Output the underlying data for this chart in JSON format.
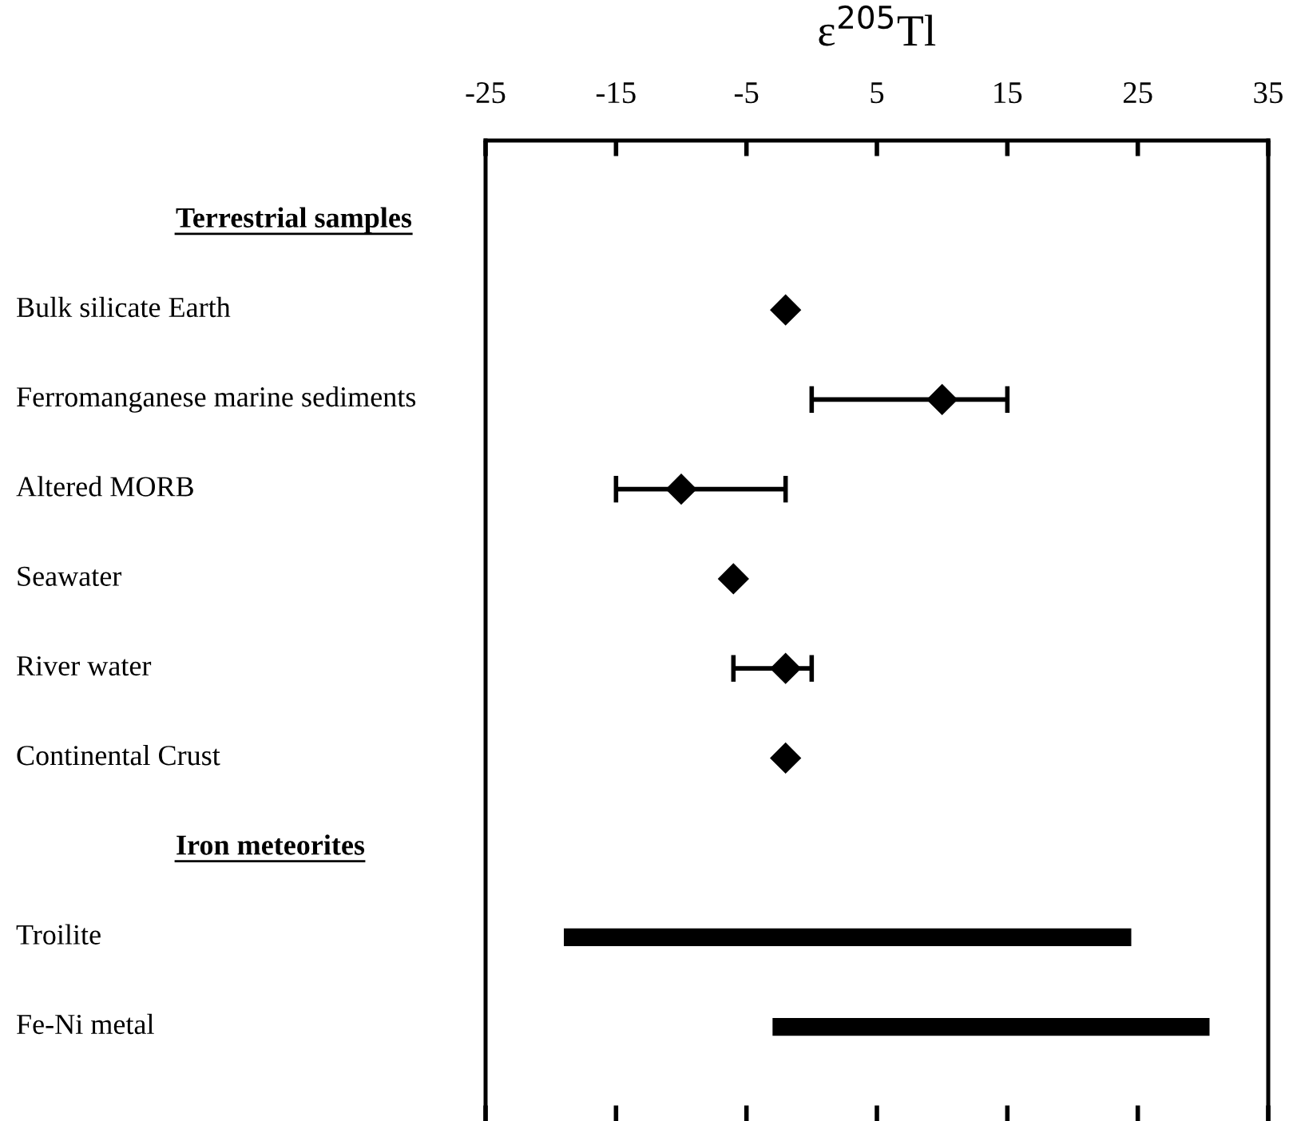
{
  "chart_data": {
    "type": "scatter",
    "orientation": "horizontal",
    "xlabel": "ε$^{205}$Tl",
    "categories": [
      null,
      "Bulk silicate Earth",
      "Ferromanganese marine sediments",
      "Altered MORB",
      "Seawater",
      "River water",
      "Continental Crust",
      null,
      "Troilite",
      "Fe-Ni metal"
    ],
    "annotations": [
      "Terrestrial samples",
      "Iron meteorites"
    ],
    "series": [
      {
        "color": "#000000",
        "values": [
          null,
          -2,
          10,
          -10,
          -6,
          -2,
          -2,
          null,
          null,
          null
        ],
        "errors": [
          null,
          null,
          [
            0,
            15
          ],
          [
            -15,
            -2
          ],
          null,
          [
            -6,
            0
          ],
          null,
          null,
          null,
          null
        ]
      },
      {
        "type": "bar",
        "color": "#000000",
        "values": [
          null,
          null,
          null,
          null,
          null,
          null,
          null,
          null,
          43.5,
          33.5
        ],
        "base": [
          null,
          null,
          null,
          null,
          null,
          null,
          null,
          null,
          -19,
          -3
        ]
      }
    ],
    "xlim": [
      -25,
      35
    ],
    "xticks": [
      -25,
      -15,
      -5,
      5,
      15,
      25,
      35
    ],
    "marker": "diamond",
    "grid": false
  }
}
